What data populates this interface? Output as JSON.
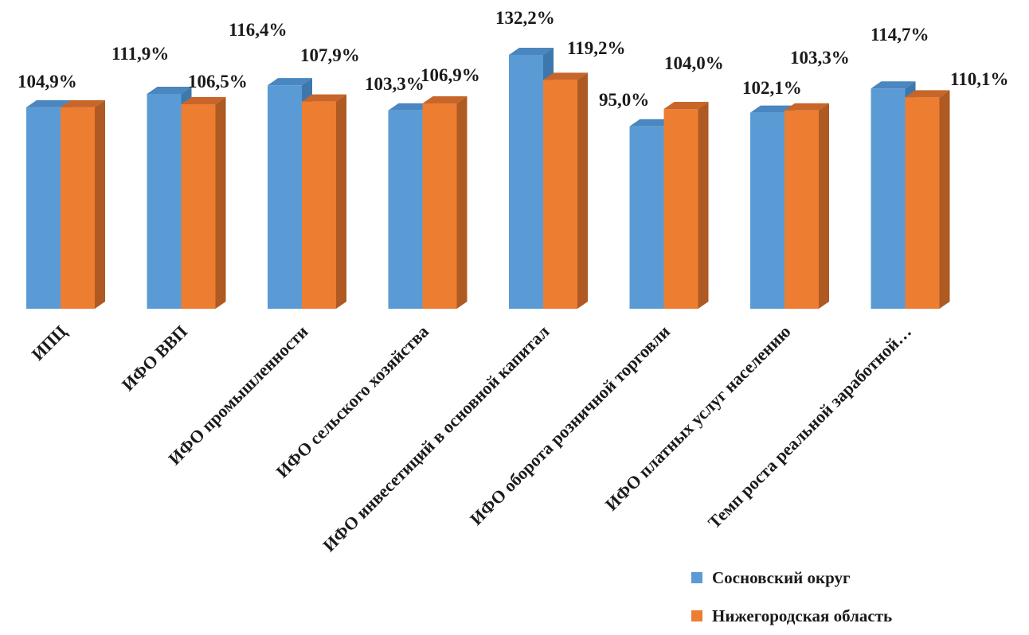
{
  "colors": {
    "series1": "#5b9bd5",
    "series1_side": "#3e77ab",
    "series1_top": "#4a86bf",
    "series2": "#ed7d31",
    "series2_side": "#ae5a22",
    "series2_top": "#c8652a"
  },
  "chart_data": {
    "type": "bar",
    "title": "",
    "xlabel": "",
    "ylabel": "",
    "ylim": [
      0,
      132.2
    ],
    "grid": false,
    "legend_position": "bottom-right",
    "value_format": "percent",
    "categories": [
      "ИПЦ",
      "ИФО ВВП",
      "ИФО промышленности",
      "ИФО сельского хозяйства",
      "ИФО инвесетиций в основной капитал",
      "ИФО оборота розничной торговли",
      "ИФО платных услуг населению",
      "Темп роста реальной заработной…"
    ],
    "series": [
      {
        "name": "Сосновский округ",
        "values": [
          104.9,
          111.9,
          116.4,
          103.3,
          132.2,
          95.0,
          102.1,
          114.7
        ],
        "labels": [
          "104,9%",
          "111,9%",
          "116,4%",
          "103,3%",
          "132,2%",
          "95,0%",
          "102,1%",
          "114,7%"
        ]
      },
      {
        "name": "Нижегородская область",
        "values": [
          104.9,
          106.5,
          107.9,
          106.9,
          119.2,
          104.0,
          103.3,
          110.1
        ],
        "labels": [
          "",
          "106,5%",
          "107,9%",
          "106,9%",
          "119,2%",
          "104,0%",
          "103,3%",
          "110,1%"
        ]
      }
    ]
  }
}
